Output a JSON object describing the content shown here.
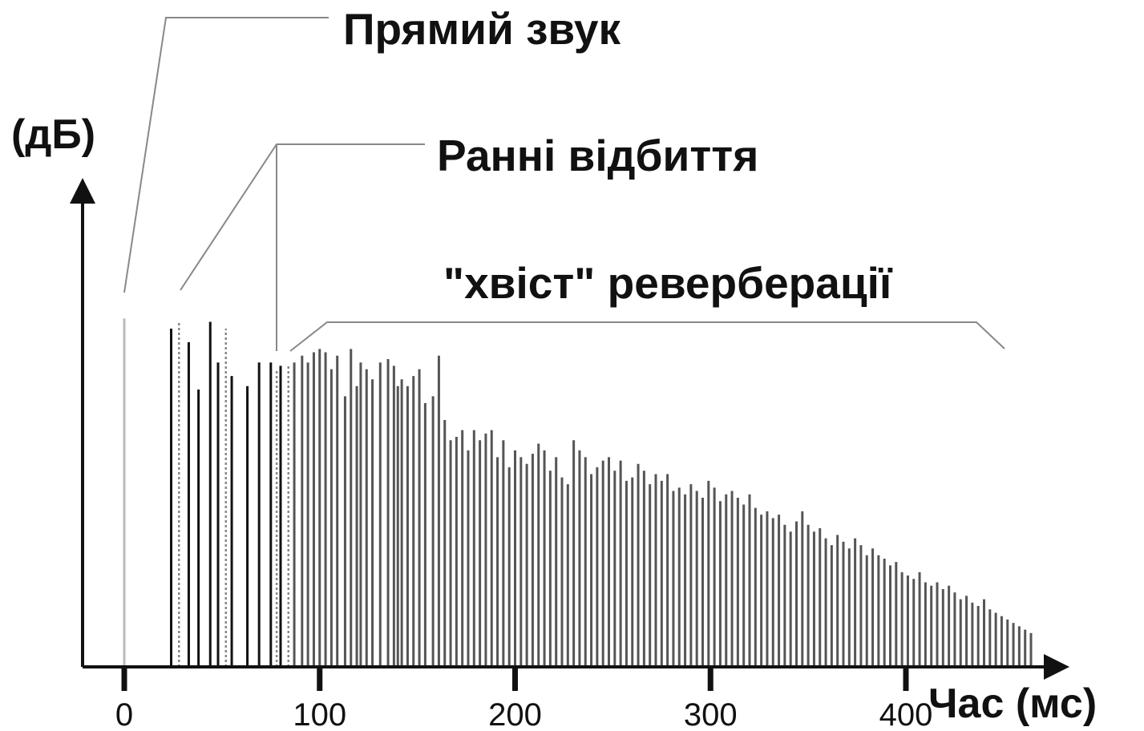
{
  "chart_data": {
    "type": "bar",
    "title": "",
    "xlabel": "Час (мс)",
    "ylabel": "(дБ)",
    "x_ticks": [
      "0",
      "100",
      "200",
      "300",
      "400"
    ],
    "x_tick_values": [
      0,
      100,
      200,
      300,
      400
    ],
    "xlim": [
      -20,
      475
    ],
    "ylim": [
      0,
      100
    ],
    "grid": false,
    "legend": "none",
    "annotations": {
      "direct_sound": "Прямий звук",
      "early_reflections": "Ранні відбиття",
      "reverb_tail": "\"хвіст\" реверберації"
    },
    "colors": {
      "direct_sound": "#bbbbbb",
      "early_reflections": "#111111",
      "dotted_reflections": "#888888",
      "reverb_tail": "#555555",
      "axes": "#111111"
    },
    "series": [
      {
        "key": "direct",
        "values": [
          [
            0,
            103
          ]
        ]
      },
      {
        "key": "early",
        "values": [
          [
            24,
            100
          ],
          [
            33,
            96
          ],
          [
            38,
            82
          ],
          [
            44,
            102
          ],
          [
            48,
            90
          ],
          [
            55,
            86
          ],
          [
            63,
            83
          ],
          [
            69,
            90
          ],
          [
            75,
            90
          ],
          [
            80,
            89
          ]
        ]
      },
      {
        "key": "early_dotted",
        "values": [
          [
            28,
            102
          ],
          [
            52,
            100
          ],
          [
            78,
            88
          ],
          [
            84,
            89
          ]
        ]
      },
      {
        "key": "tail",
        "values": [
          [
            87,
            90
          ],
          [
            91,
            92
          ],
          [
            94,
            90
          ],
          [
            97,
            93
          ],
          [
            100,
            94
          ],
          [
            103,
            93
          ],
          [
            106,
            88
          ],
          [
            109,
            92
          ],
          [
            113,
            80
          ],
          [
            116,
            94
          ],
          [
            119,
            83
          ],
          [
            121,
            90
          ],
          [
            124,
            88
          ],
          [
            127,
            85
          ],
          [
            131,
            90
          ],
          [
            135,
            91
          ],
          [
            138,
            89
          ],
          [
            140,
            83
          ],
          [
            142,
            85
          ],
          [
            145,
            83
          ],
          [
            148,
            86
          ],
          [
            151,
            88
          ],
          [
            154,
            78
          ],
          [
            158,
            80
          ],
          [
            161,
            92
          ],
          [
            164,
            73
          ],
          [
            167,
            67
          ],
          [
            170,
            68
          ],
          [
            173,
            70
          ],
          [
            176,
            64
          ],
          [
            179,
            70
          ],
          [
            182,
            67
          ],
          [
            185,
            69
          ],
          [
            188,
            70
          ],
          [
            191,
            62
          ],
          [
            194,
            67
          ],
          [
            197,
            59
          ],
          [
            200,
            64
          ],
          [
            203,
            62
          ],
          [
            206,
            60
          ],
          [
            209,
            63
          ],
          [
            212,
            66
          ],
          [
            215,
            64
          ],
          [
            218,
            58
          ],
          [
            221,
            62
          ],
          [
            224,
            56
          ],
          [
            227,
            54
          ],
          [
            230,
            67
          ],
          [
            233,
            64
          ],
          [
            236,
            62
          ],
          [
            239,
            57
          ],
          [
            242,
            59
          ],
          [
            245,
            61
          ],
          [
            248,
            62
          ],
          [
            251,
            58
          ],
          [
            254,
            61
          ],
          [
            257,
            55
          ],
          [
            260,
            56
          ],
          [
            263,
            60
          ],
          [
            266,
            58
          ],
          [
            269,
            54
          ],
          [
            272,
            57
          ],
          [
            275,
            55
          ],
          [
            278,
            57
          ],
          [
            281,
            52
          ],
          [
            284,
            53
          ],
          [
            287,
            51
          ],
          [
            290,
            54
          ],
          [
            293,
            52
          ],
          [
            296,
            50
          ],
          [
            299,
            55
          ],
          [
            302,
            53
          ],
          [
            305,
            49
          ],
          [
            308,
            51
          ],
          [
            311,
            52
          ],
          [
            314,
            50
          ],
          [
            317,
            48
          ],
          [
            320,
            51
          ],
          [
            323,
            47
          ],
          [
            326,
            45
          ],
          [
            329,
            46
          ],
          [
            332,
            44
          ],
          [
            335,
            45
          ],
          [
            338,
            42
          ],
          [
            341,
            40
          ],
          [
            344,
            43
          ],
          [
            347,
            46
          ],
          [
            350,
            42
          ],
          [
            353,
            40
          ],
          [
            356,
            41
          ],
          [
            359,
            38
          ],
          [
            362,
            36
          ],
          [
            365,
            39
          ],
          [
            368,
            37
          ],
          [
            371,
            35
          ],
          [
            374,
            38
          ],
          [
            377,
            36
          ],
          [
            380,
            33
          ],
          [
            383,
            35
          ],
          [
            386,
            33
          ],
          [
            389,
            32
          ],
          [
            392,
            30
          ],
          [
            395,
            31
          ],
          [
            398,
            28
          ],
          [
            401,
            27
          ],
          [
            404,
            26
          ],
          [
            407,
            28
          ],
          [
            410,
            25
          ],
          [
            413,
            24
          ],
          [
            416,
            25
          ],
          [
            419,
            23
          ],
          [
            422,
            24
          ],
          [
            425,
            22
          ],
          [
            428,
            20
          ],
          [
            431,
            21
          ],
          [
            434,
            19
          ],
          [
            437,
            18
          ],
          [
            440,
            20
          ],
          [
            443,
            17
          ],
          [
            446,
            16
          ],
          [
            449,
            15
          ],
          [
            452,
            14
          ],
          [
            455,
            13
          ],
          [
            458,
            12
          ],
          [
            461,
            11
          ],
          [
            464,
            10
          ]
        ]
      }
    ]
  }
}
